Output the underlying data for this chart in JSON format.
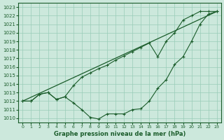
{
  "xlabel": "Graphe pression niveau de la mer (hPa)",
  "x_ticks": [
    0,
    1,
    2,
    3,
    4,
    5,
    6,
    7,
    8,
    9,
    10,
    11,
    12,
    13,
    14,
    15,
    16,
    17,
    18,
    19,
    20,
    21,
    22,
    23
  ],
  "ylim": [
    1009.5,
    1023.5
  ],
  "yticks": [
    1010,
    1011,
    1012,
    1013,
    1014,
    1015,
    1016,
    1017,
    1018,
    1019,
    1020,
    1021,
    1022,
    1023
  ],
  "xlim": [
    -0.5,
    23.5
  ],
  "bg_color": "#cce8dc",
  "grid_color": "#99ccb8",
  "line_color": "#1a5c2a",
  "line1_x": [
    0,
    23
  ],
  "line1_y": [
    1012.0,
    1022.5
  ],
  "line2_x": [
    0,
    1,
    2,
    3,
    4,
    5,
    6,
    7,
    8,
    9,
    10,
    11,
    12,
    13,
    14,
    15,
    16,
    17,
    18,
    19,
    20,
    21,
    22,
    23
  ],
  "line2_y": [
    1012.0,
    1012.0,
    1012.8,
    1013.0,
    1012.2,
    1012.5,
    1013.8,
    1014.8,
    1015.3,
    1015.8,
    1016.2,
    1016.8,
    1017.3,
    1017.8,
    1018.3,
    1018.8,
    1017.2,
    1019.0,
    1020.0,
    1021.5,
    1022.0,
    1022.5,
    1022.5,
    1022.5
  ],
  "line3_x": [
    0,
    1,
    2,
    3,
    4,
    5,
    6,
    7,
    8,
    9,
    10,
    11,
    12,
    13,
    14,
    15,
    16,
    17,
    18,
    19,
    20,
    21,
    22,
    23
  ],
  "line3_y": [
    1012.0,
    1012.0,
    1012.8,
    1013.0,
    1012.2,
    1012.5,
    1011.8,
    1011.0,
    1010.1,
    1009.9,
    1010.5,
    1010.5,
    1010.5,
    1011.0,
    1011.1,
    1012.0,
    1013.5,
    1014.5,
    1016.3,
    1017.2,
    1019.0,
    1021.0,
    1022.2,
    1022.5
  ]
}
